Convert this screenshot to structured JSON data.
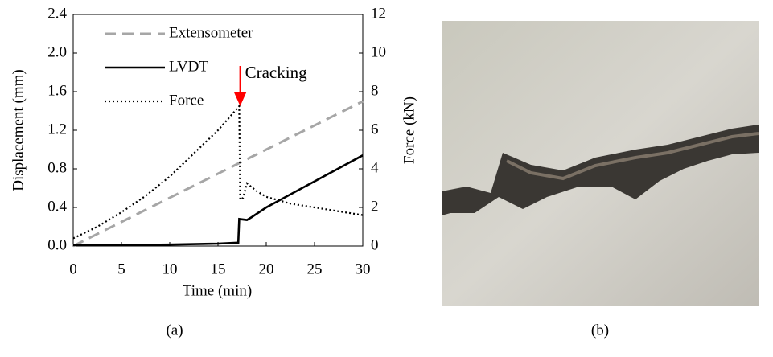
{
  "chart_data": {
    "type": "line",
    "xlabel": "Time (min)",
    "ylabel": "Displacement (mm)",
    "y2label": "Force (kN)",
    "xlim": [
      0,
      30
    ],
    "xticks": [
      0,
      5,
      10,
      15,
      20,
      25,
      30
    ],
    "ylim": [
      0,
      2.4
    ],
    "yticks": [
      {
        "value": 0,
        "label": "0.0"
      },
      {
        "value": 0.4,
        "label": "0.4"
      },
      {
        "value": 0.8,
        "label": "0.8"
      },
      {
        "value": 1.2,
        "label": "1.2"
      },
      {
        "value": 1.6,
        "label": "1.6"
      },
      {
        "value": 2.0,
        "label": "2.0"
      },
      {
        "value": 2.4,
        "label": "2.4"
      }
    ],
    "y2lim": [
      0,
      12
    ],
    "y2ticks": [
      0,
      2,
      4,
      6,
      8,
      10,
      12
    ],
    "series": [
      {
        "name": "Extensometer",
        "color": "#a6a6a6",
        "dash": "dashed",
        "x": [
          0,
          30
        ],
        "values": [
          0,
          1.5
        ]
      },
      {
        "name": "LVDT",
        "color": "#000000",
        "dash": "solid",
        "x": [
          0,
          5,
          10,
          15,
          17.1,
          17.2,
          18,
          18.5,
          20,
          25,
          30
        ],
        "values": [
          0.01,
          0.01,
          0.015,
          0.025,
          0.035,
          0.28,
          0.27,
          0.3,
          0.4,
          0.67,
          0.94
        ]
      },
      {
        "name": "Force",
        "color": "#000000",
        "dash": "dotted",
        "axis": "y2",
        "x": [
          0,
          2.5,
          5,
          7.5,
          10,
          12.5,
          15,
          17.2,
          17.3,
          17.6,
          18,
          19,
          20,
          22.5,
          25,
          27.5,
          30
        ],
        "values": [
          0.4,
          1.0,
          1.75,
          2.6,
          3.6,
          4.8,
          6.0,
          7.25,
          2.4,
          2.5,
          3.25,
          2.85,
          2.55,
          2.2,
          2.0,
          1.8,
          1.6
        ]
      }
    ],
    "annotation": {
      "text": "Cracking",
      "color": "#ff0000",
      "x": 17.3,
      "y": 1.45
    },
    "panel_labels": [
      "(a)",
      "(b)"
    ]
  }
}
